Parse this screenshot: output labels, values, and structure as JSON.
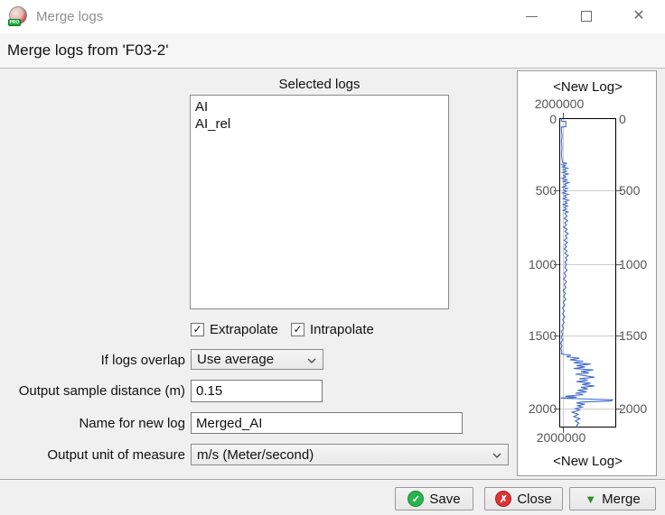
{
  "window": {
    "title": "Merge logs"
  },
  "icons": {
    "check": "✓",
    "cross": "✗",
    "window_close": "✕",
    "merge_triangle": "▼",
    "pro_badge": "PRO"
  },
  "header": {
    "title": "Merge logs from 'F03-2'"
  },
  "form": {
    "selected_logs_label": "Selected logs",
    "logs": [
      "AI",
      "AI_rel"
    ],
    "extrapolate": {
      "label": "Extrapolate",
      "checked": true
    },
    "intrapolate": {
      "label": "Intrapolate",
      "checked": true
    },
    "overlap": {
      "label": "If logs overlap",
      "value": "Use average"
    },
    "sample_distance": {
      "label": "Output sample distance (m)",
      "value": "0.15"
    },
    "new_log_name": {
      "label": "Name for new log",
      "value": "Merged_AI"
    },
    "unit": {
      "label": "Output unit of measure",
      "value": "m/s (Meter/second)"
    }
  },
  "buttons": {
    "save": "Save",
    "close": "Close",
    "merge": "Merge"
  },
  "colors": {
    "curve": "#4169cf",
    "accent_green": "#2bb44e",
    "accent_red": "#dd3434"
  },
  "chart_data": {
    "type": "line",
    "title_top": "<New Log>",
    "title_bottom": "<New Log>",
    "value_axis_label_top": "2000000",
    "value_axis_label_bottom": "2000000",
    "depth_ticks": [
      "0",
      "500",
      "1000",
      "1500",
      "2000"
    ],
    "depth_range": [
      0,
      2117
    ],
    "curve_color": "#4169cf",
    "curve": [
      [
        0,
        0.03
      ],
      [
        18,
        0.03
      ],
      [
        20,
        0.11
      ],
      [
        55,
        0.11
      ],
      [
        58,
        0.03
      ],
      [
        80,
        0.03
      ],
      [
        120,
        0.04
      ],
      [
        160,
        0.03
      ],
      [
        200,
        0.04
      ],
      [
        240,
        0.03
      ],
      [
        280,
        0.04
      ],
      [
        300,
        0.05
      ],
      [
        308,
        0.13
      ],
      [
        316,
        0.04
      ],
      [
        324,
        0.1
      ],
      [
        332,
        0.05
      ],
      [
        340,
        0.14
      ],
      [
        350,
        0.06
      ],
      [
        360,
        0.12
      ],
      [
        370,
        0.05
      ],
      [
        380,
        0.15
      ],
      [
        390,
        0.07
      ],
      [
        400,
        0.11
      ],
      [
        410,
        0.04
      ],
      [
        420,
        0.13
      ],
      [
        430,
        0.06
      ],
      [
        440,
        0.16
      ],
      [
        450,
        0.08
      ],
      [
        460,
        0.12
      ],
      [
        470,
        0.05
      ],
      [
        480,
        0.14
      ],
      [
        490,
        0.07
      ],
      [
        500,
        0.12
      ],
      [
        510,
        0.05
      ],
      [
        520,
        0.15
      ],
      [
        530,
        0.08
      ],
      [
        540,
        0.12
      ],
      [
        550,
        0.06
      ],
      [
        560,
        0.16
      ],
      [
        570,
        0.09
      ],
      [
        580,
        0.13
      ],
      [
        590,
        0.06
      ],
      [
        600,
        0.14
      ],
      [
        610,
        0.08
      ],
      [
        620,
        0.12
      ],
      [
        630,
        0.06
      ],
      [
        640,
        0.15
      ],
      [
        650,
        0.09
      ],
      [
        670,
        0.13
      ],
      [
        685,
        0.08
      ],
      [
        700,
        0.14
      ],
      [
        715,
        0.09
      ],
      [
        730,
        0.12
      ],
      [
        745,
        0.07
      ],
      [
        760,
        0.13
      ],
      [
        775,
        0.09
      ],
      [
        790,
        0.15
      ],
      [
        805,
        0.1
      ],
      [
        820,
        0.13
      ],
      [
        835,
        0.08
      ],
      [
        850,
        0.14
      ],
      [
        865,
        0.09
      ],
      [
        880,
        0.12
      ],
      [
        895,
        0.08
      ],
      [
        910,
        0.13
      ],
      [
        925,
        0.09
      ],
      [
        940,
        0.15
      ],
      [
        955,
        0.1
      ],
      [
        970,
        0.13
      ],
      [
        985,
        0.09
      ],
      [
        1000,
        0.12
      ],
      [
        1020,
        0.09
      ],
      [
        1040,
        0.13
      ],
      [
        1060,
        0.08
      ],
      [
        1080,
        0.11
      ],
      [
        1100,
        0.07
      ],
      [
        1120,
        0.12
      ],
      [
        1140,
        0.08
      ],
      [
        1160,
        0.11
      ],
      [
        1180,
        0.06
      ],
      [
        1200,
        0.1
      ],
      [
        1220,
        0.07
      ],
      [
        1240,
        0.11
      ],
      [
        1260,
        0.06
      ],
      [
        1280,
        0.09
      ],
      [
        1300,
        0.05
      ],
      [
        1320,
        0.08
      ],
      [
        1340,
        0.05
      ],
      [
        1360,
        0.09
      ],
      [
        1380,
        0.05
      ],
      [
        1400,
        0.08
      ],
      [
        1420,
        0.04
      ],
      [
        1440,
        0.07
      ],
      [
        1460,
        0.03
      ],
      [
        1480,
        0.05
      ],
      [
        1500,
        0.03
      ],
      [
        1520,
        0.05
      ],
      [
        1540,
        0.02
      ],
      [
        1560,
        0.04
      ],
      [
        1580,
        0.02
      ],
      [
        1600,
        0.04
      ],
      [
        1615,
        0.03
      ],
      [
        1625,
        0.2
      ],
      [
        1635,
        0.12
      ],
      [
        1645,
        0.35
      ],
      [
        1655,
        0.18
      ],
      [
        1665,
        0.42
      ],
      [
        1675,
        0.25
      ],
      [
        1685,
        0.55
      ],
      [
        1695,
        0.3
      ],
      [
        1705,
        0.45
      ],
      [
        1715,
        0.25
      ],
      [
        1725,
        0.6
      ],
      [
        1735,
        0.38
      ],
      [
        1745,
        0.52
      ],
      [
        1755,
        0.28
      ],
      [
        1765,
        0.45
      ],
      [
        1775,
        0.62
      ],
      [
        1785,
        0.35
      ],
      [
        1795,
        0.5
      ],
      [
        1805,
        0.3
      ],
      [
        1815,
        0.55
      ],
      [
        1825,
        0.4
      ],
      [
        1835,
        0.62
      ],
      [
        1845,
        0.38
      ],
      [
        1855,
        0.5
      ],
      [
        1865,
        0.32
      ],
      [
        1875,
        0.48
      ],
      [
        1885,
        0.28
      ],
      [
        1895,
        0.42
      ],
      [
        1905,
        0.1
      ],
      [
        1912,
        0.3
      ],
      [
        1918,
        0.02
      ],
      [
        1925,
        0.55
      ],
      [
        1930,
        0.94
      ],
      [
        1938,
        0.92
      ],
      [
        1945,
        0.4
      ],
      [
        1952,
        0.3
      ],
      [
        1960,
        0.45
      ],
      [
        1970,
        0.32
      ],
      [
        1980,
        0.4
      ],
      [
        1990,
        0.28
      ],
      [
        2000,
        0.35
      ],
      [
        2015,
        0.22
      ],
      [
        2030,
        0.33
      ],
      [
        2045,
        0.25
      ],
      [
        2060,
        0.36
      ],
      [
        2075,
        0.28
      ],
      [
        2090,
        0.34
      ],
      [
        2105,
        0.3
      ],
      [
        2117,
        0.32
      ]
    ]
  }
}
